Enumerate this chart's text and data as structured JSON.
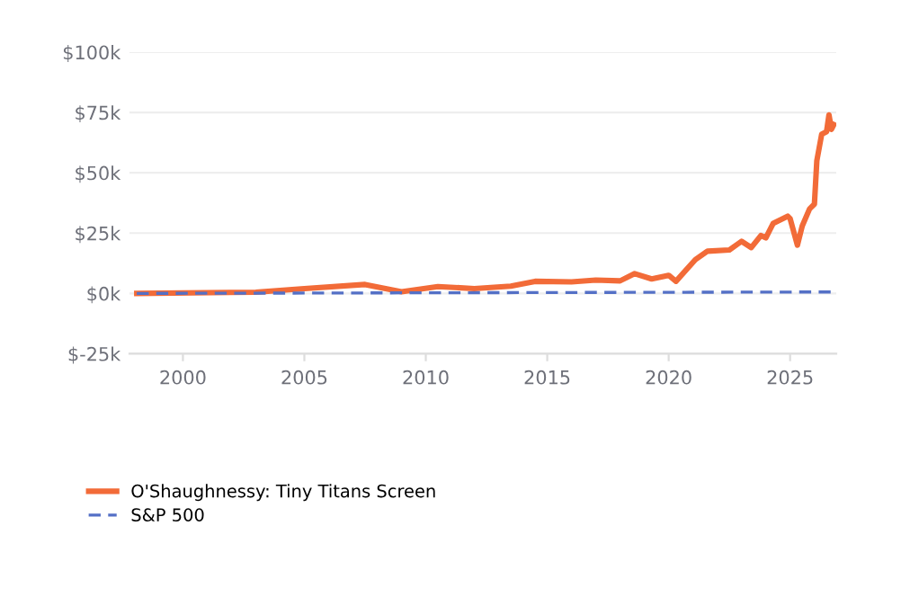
{
  "chart_data": {
    "type": "line",
    "xlim": [
      1997.8,
      2026.9
    ],
    "xticks": [
      2000,
      2005,
      2010,
      2015,
      2020,
      2025
    ],
    "ylim": [
      -25,
      100
    ],
    "yticks": [
      {
        "value": -25,
        "label": "$-25k"
      },
      {
        "value": 0,
        "label": "$0k"
      },
      {
        "value": 25,
        "label": "$25k"
      },
      {
        "value": 50,
        "label": "$50k"
      },
      {
        "value": 75,
        "label": "$75k"
      },
      {
        "value": 100,
        "label": "$100k"
      }
    ],
    "grid": "y",
    "legend": "bottom left",
    "marker": "none",
    "series": [
      {
        "name": "O'Shaughnessy: Tiny Titans Screen",
        "color": "#f26b38",
        "line_style": "solid",
        "x": [
          1998.1,
          2003,
          2005,
          2007.5,
          2009,
          2010.5,
          2012,
          2013.5,
          2014.5,
          2016,
          2017,
          2018,
          2018.6,
          2019.3,
          2020,
          2020.3,
          2021.1,
          2021.6,
          2022.5,
          2023,
          2023.4,
          2023.8,
          2024,
          2024.3,
          2024.9,
          2025.0,
          2025.3,
          2025.5,
          2025.8,
          2026.0,
          2026.1,
          2026.3,
          2026.5,
          2026.6,
          2026.7,
          2026.8
        ],
        "values": [
          0,
          0.5,
          2,
          3.7,
          0.7,
          2.8,
          2,
          3,
          5,
          4.8,
          5.5,
          5.2,
          8.2,
          6,
          7.5,
          5,
          14,
          17.5,
          18,
          21.6,
          19,
          24,
          23,
          29,
          32,
          31,
          20,
          28,
          35,
          37,
          55,
          66,
          67,
          74,
          68,
          70
        ]
      },
      {
        "name": "S&P 500",
        "color": "#5470c6",
        "line_style": "dashed",
        "x": [
          1998.1,
          2026.8
        ],
        "values": [
          0,
          0.6
        ]
      }
    ]
  }
}
